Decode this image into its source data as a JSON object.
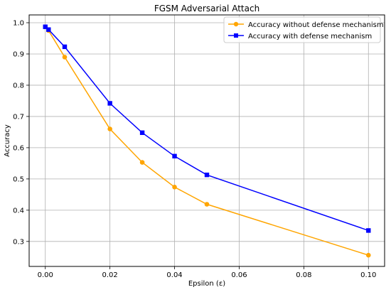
{
  "chart_data": {
    "type": "line",
    "title": "FGSM Adversarial Attach",
    "xlabel": "Epsilon (ε)",
    "ylabel": "Accuracy",
    "xlim": [
      -0.005,
      0.105
    ],
    "ylim": [
      0.22,
      1.025
    ],
    "xticks": [
      0.0,
      0.02,
      0.04,
      0.06,
      0.08,
      0.1
    ],
    "xtick_labels": [
      "0.00",
      "0.02",
      "0.04",
      "0.06",
      "0.08",
      "0.10"
    ],
    "yticks": [
      0.3,
      0.4,
      0.5,
      0.6,
      0.7,
      0.8,
      0.9,
      1.0
    ],
    "ytick_labels": [
      "0.3",
      "0.4",
      "0.5",
      "0.6",
      "0.7",
      "0.8",
      "0.9",
      "1.0"
    ],
    "grid": true,
    "legend_position": "top-right",
    "series": [
      {
        "name": "Accuracy without defense mechanism",
        "color": "#ffa500",
        "marker": "circle",
        "x": [
          0.0,
          0.001,
          0.006,
          0.02,
          0.03,
          0.04,
          0.05,
          0.1
        ],
        "y": [
          0.987,
          0.975,
          0.89,
          0.66,
          0.553,
          0.474,
          0.419,
          0.256
        ]
      },
      {
        "name": "Accuracy with defense mechanism",
        "color": "#0000ff",
        "marker": "square",
        "x": [
          0.0,
          0.001,
          0.006,
          0.02,
          0.03,
          0.04,
          0.05,
          0.1
        ],
        "y": [
          0.987,
          0.978,
          0.923,
          0.742,
          0.648,
          0.573,
          0.513,
          0.335
        ]
      }
    ]
  }
}
